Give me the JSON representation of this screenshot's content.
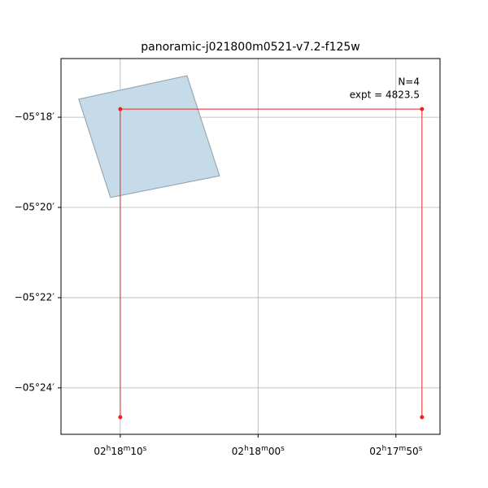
{
  "chart_data": {
    "type": "footprint",
    "title": "panoramic-j021800m0521-v7.2-f125w",
    "xlim": [
      8294.3,
      8266.8
    ],
    "ylim": [
      -325.03,
      -316.7
    ],
    "xticks": [
      {
        "value": 8290,
        "label": "02h18m10s"
      },
      {
        "value": 8280,
        "label": "02h18m00s"
      },
      {
        "value": 8270,
        "label": "02h17m50s"
      }
    ],
    "yticks": [
      {
        "value": -318,
        "label": "−05°18′"
      },
      {
        "value": -320,
        "label": "−05°20′"
      },
      {
        "value": -322,
        "label": "−05°22′"
      },
      {
        "value": -324,
        "label": "−05°24′"
      }
    ],
    "grid": true,
    "footprint": {
      "x": [
        8293.01,
        8285.16,
        8282.8,
        8290.71
      ],
      "y": [
        -317.6,
        -317.08,
        -319.3,
        -319.78
      ],
      "color": "#c6dbea",
      "edge": "#9aa8b2"
    },
    "outline": {
      "x": [
        8290,
        8290,
        8268.11,
        8268.11
      ],
      "y": [
        -324.65,
        -317.82,
        -317.82,
        -324.65
      ],
      "color": "#ee2222"
    },
    "annotations": [
      "N=4",
      "expt = 4823.5"
    ]
  }
}
